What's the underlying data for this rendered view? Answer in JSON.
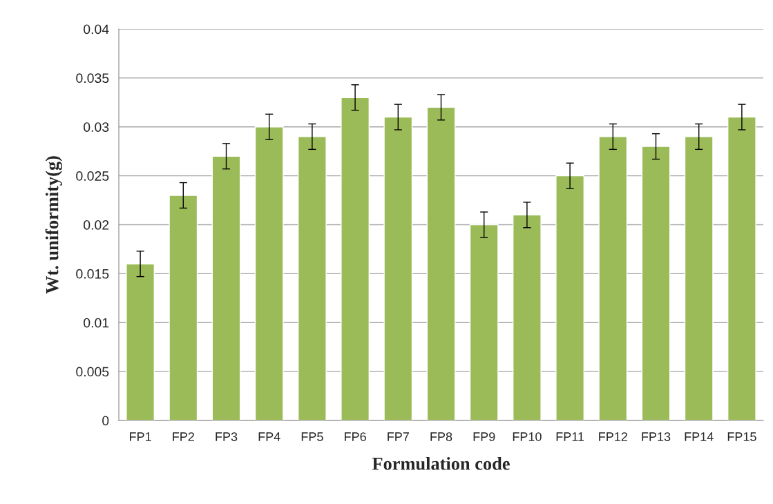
{
  "chart_data": {
    "type": "bar",
    "xlabel": "Formulation code",
    "ylabel": "Wt. uniformity(g)",
    "categories": [
      "FP1",
      "FP2",
      "FP3",
      "FP4",
      "FP5",
      "FP6",
      "FP7",
      "FP8",
      "FP9",
      "FP10",
      "FP11",
      "FP12",
      "FP13",
      "FP14",
      "FP15"
    ],
    "values": [
      0.016,
      0.023,
      0.027,
      0.03,
      0.029,
      0.033,
      0.031,
      0.032,
      0.02,
      0.021,
      0.025,
      0.029,
      0.028,
      0.029,
      0.031
    ],
    "errors": [
      0.0013,
      0.0013,
      0.0013,
      0.0013,
      0.0013,
      0.0013,
      0.0013,
      0.0013,
      0.0013,
      0.0013,
      0.0013,
      0.0013,
      0.0013,
      0.0013,
      0.0013
    ],
    "color": "#9bbb59",
    "ylim": [
      0,
      0.04
    ],
    "yticks": [
      0,
      0.005,
      0.01,
      0.015,
      0.02,
      0.025,
      0.03,
      0.035,
      0.04
    ],
    "grid": "y",
    "legend": false
  }
}
